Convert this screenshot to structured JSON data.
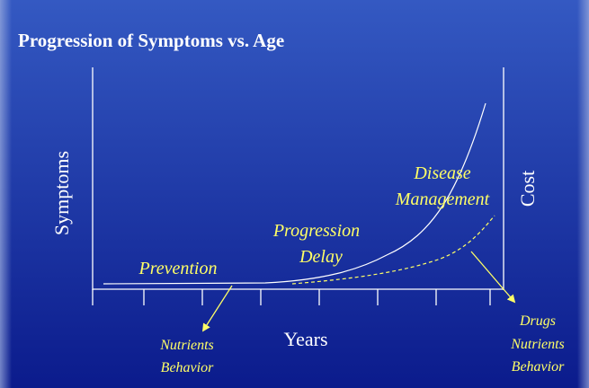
{
  "title": "Progression of Symptoms vs. Age",
  "axes": {
    "y": "Symptoms",
    "y2": "Cost",
    "x": "Years"
  },
  "phases": [
    {
      "lines": [
        "Prevention"
      ]
    },
    {
      "lines": [
        "Progression",
        "Delay"
      ]
    },
    {
      "lines": [
        "Disease",
        "Management"
      ]
    }
  ],
  "callouts": [
    {
      "lines": [
        "Nutrients",
        "Behavior"
      ]
    },
    {
      "lines": [
        "Drugs",
        "Nutrients",
        "Behavior"
      ]
    }
  ]
}
